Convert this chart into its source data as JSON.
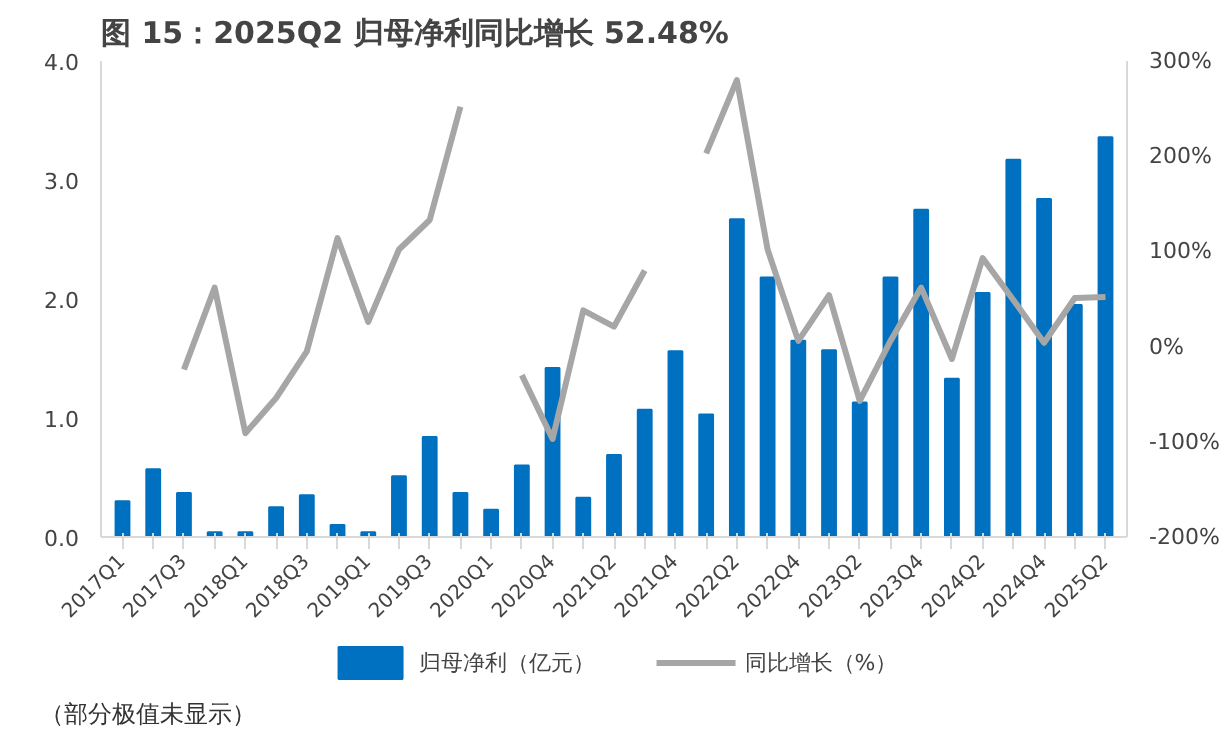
{
  "chart_data": {
    "type": "bar",
    "title": "图 15：2025Q2 归母净利同比增长 52.48%",
    "categories": [
      "2017Q1",
      null,
      "2017Q3",
      null,
      "2018Q1",
      null,
      "2018Q3",
      null,
      "2019Q1",
      null,
      "2019Q3",
      null,
      "2020Q1",
      null,
      "2020Q4",
      null,
      "2021Q2",
      null,
      "2021Q4",
      null,
      "2022Q2",
      null,
      "2022Q4",
      null,
      "2023Q2",
      null,
      "2023Q4",
      null,
      "2024Q2",
      null,
      "2024Q4",
      null,
      "2025Q2"
    ],
    "series": [
      {
        "name": "归母净利（亿元）",
        "color": "#0070c0",
        "values": [
          0.3,
          0.57,
          0.37,
          0.04,
          0.04,
          0.25,
          0.35,
          0.1,
          0.04,
          0.51,
          0.84,
          0.37,
          0.23,
          0.6,
          1.42,
          0.33,
          0.69,
          1.07,
          1.56,
          1.03,
          2.67,
          2.18,
          1.65,
          1.57,
          1.13,
          2.18,
          2.75,
          1.33,
          2.05,
          3.17,
          2.84,
          1.95,
          3.36
        ]
      },
      {
        "name": "同比增长（%）",
        "type": "line",
        "axis": "y2",
        "color": "#a6a6a6",
        "values": [
          null,
          null,
          -24,
          62,
          -91,
          -54,
          -5,
          114,
          26,
          102,
          133,
          252,
          null,
          -30,
          -97,
          38,
          21,
          80,
          null,
          203,
          280,
          102,
          6,
          54,
          -57,
          6,
          62,
          -13,
          93,
          49,
          4,
          51,
          52
        ]
      }
    ],
    "ylim": [
      0,
      4
    ],
    "yticks": [
      {
        "value": 0,
        "label": "0.0"
      },
      {
        "value": 1,
        "label": "1.0"
      },
      {
        "value": 2,
        "label": "2.0"
      },
      {
        "value": 3,
        "label": "3.0"
      },
      {
        "value": 4,
        "label": "4.0"
      }
    ],
    "y2lim": [
      -200,
      300
    ],
    "y2ticks": [
      {
        "value": -200,
        "label": "-200%"
      },
      {
        "value": -100,
        "label": "-100%"
      },
      {
        "value": 0,
        "label": "0%"
      },
      {
        "value": 100,
        "label": "100%"
      },
      {
        "value": 200,
        "label": "200%"
      },
      {
        "value": 300,
        "label": "300%"
      }
    ],
    "grid": false,
    "legend": "bottom",
    "marker": "none",
    "line_style": "solid",
    "annotations": [
      "（部分极值未显示）"
    ]
  }
}
